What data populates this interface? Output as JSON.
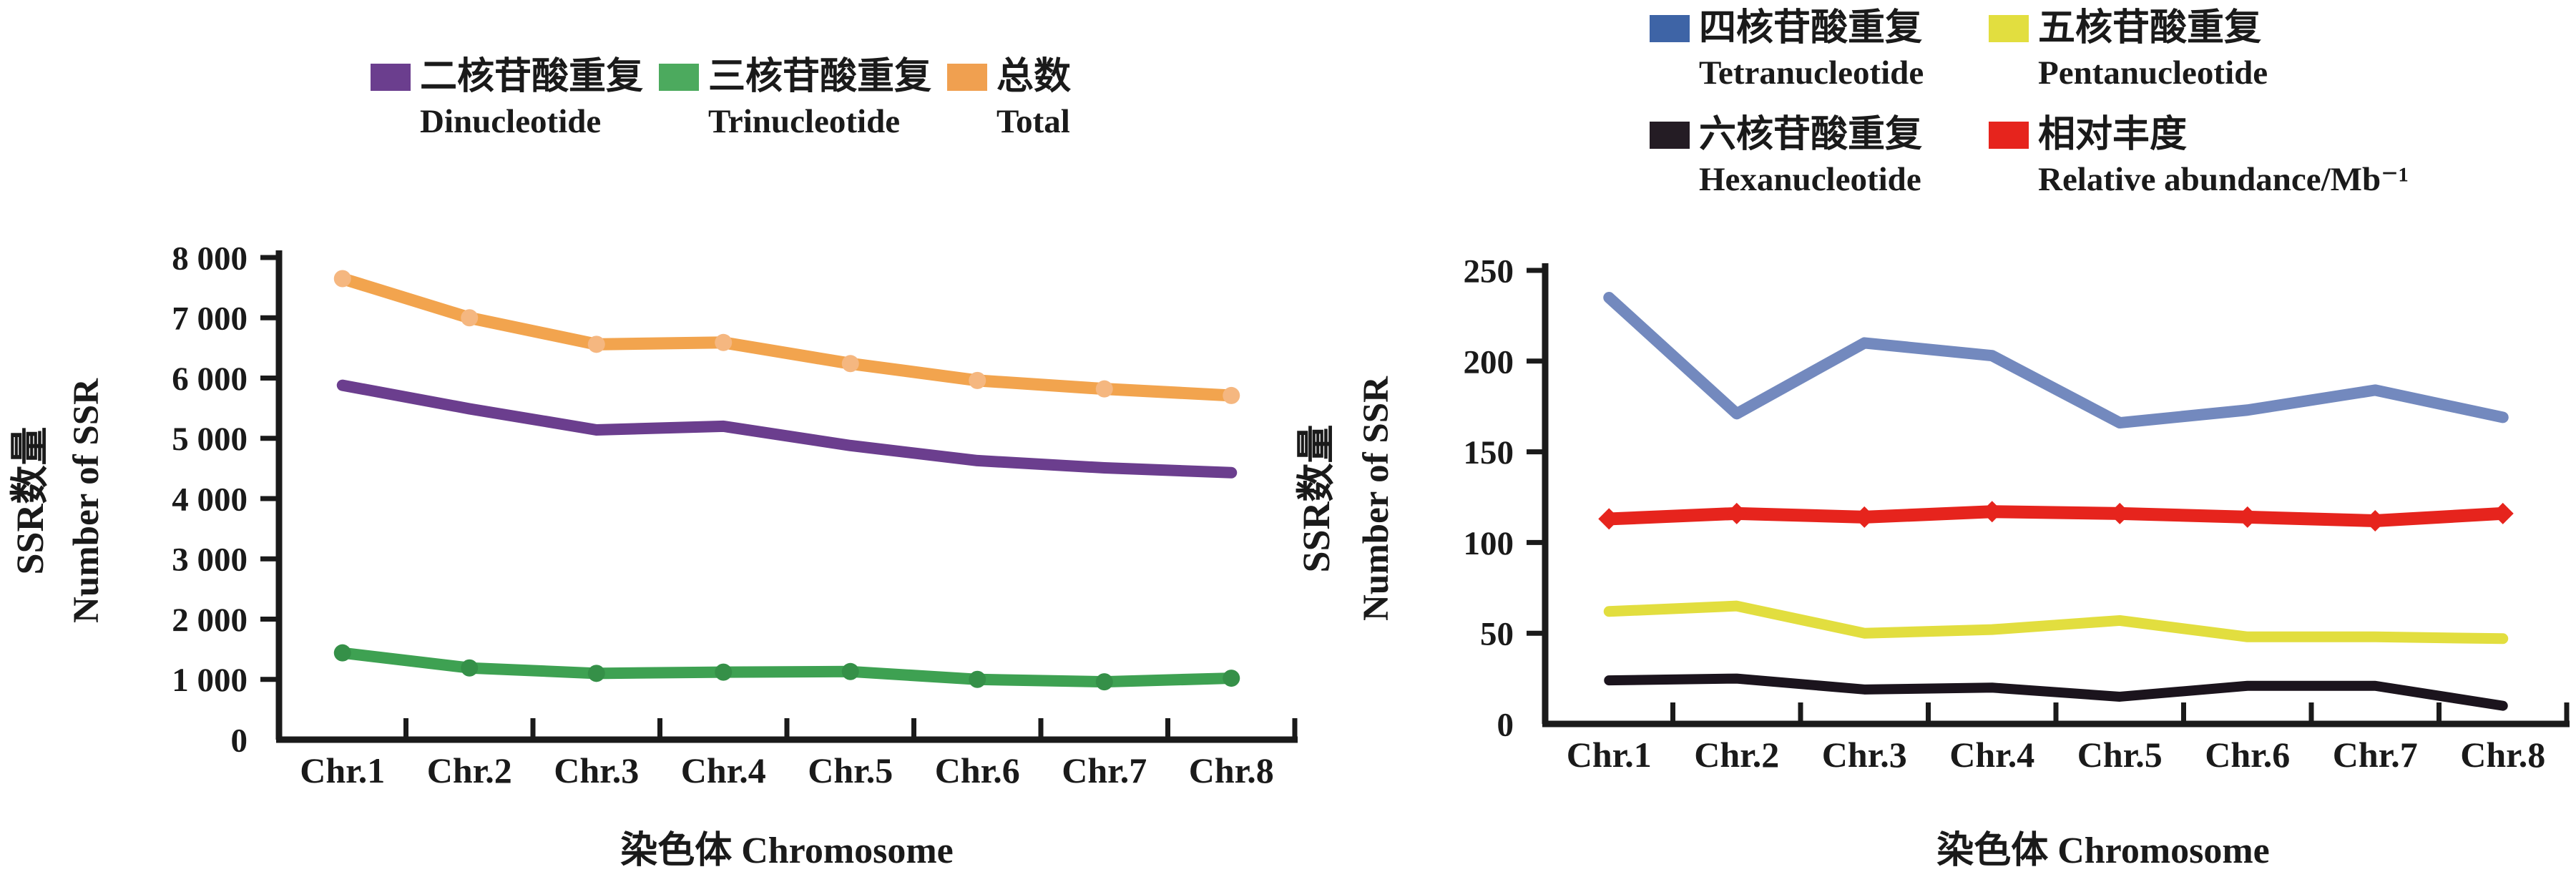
{
  "figure": {
    "background": "#ffffff",
    "text_color": "#1a1a1a"
  },
  "chart_data": [
    {
      "id": "left",
      "type": "line",
      "title": "",
      "xlabel": "染色体 Chromosome",
      "ylabel_zh": "SSR数量",
      "ylabel_en": "Number of SSR",
      "categories": [
        "Chr.1",
        "Chr.2",
        "Chr.3",
        "Chr.4",
        "Chr.5",
        "Chr.6",
        "Chr.7",
        "Chr.8"
      ],
      "ylim": [
        0,
        8000
      ],
      "ytick_step": 1000,
      "ytick_labels": [
        "0",
        "1 000",
        "2 000",
        "3 000",
        "4 000",
        "5 000",
        "6 000",
        "7 000",
        "8 000"
      ],
      "grid": false,
      "legend_position": "top",
      "series": [
        {
          "name_zh": "二核苷酸重复",
          "name_en": "Dinucleotide",
          "color": "#6B3E8E",
          "swatch_color": "#6B3E8E",
          "line_width": 16,
          "marker": "none",
          "values": [
            5880,
            5490,
            5140,
            5200,
            4880,
            4630,
            4510,
            4430
          ]
        },
        {
          "name_zh": "三核苷酸重复",
          "name_en": "Trinucleotide",
          "color": "#3EA152",
          "swatch_color": "#4CAA5E",
          "line_width": 16,
          "marker": "circle",
          "marker_color": "#359048",
          "marker_size": 12,
          "values": [
            1440,
            1190,
            1100,
            1120,
            1130,
            1000,
            960,
            1020
          ]
        },
        {
          "name_zh": "总数",
          "name_en": "Total",
          "color": "#F2A44E",
          "swatch_color": "#F0A050",
          "line_width": 17,
          "marker": "circle",
          "marker_color": "#F5B780",
          "marker_size": 12,
          "values": [
            7650,
            7000,
            6560,
            6590,
            6240,
            5960,
            5820,
            5710
          ]
        }
      ]
    },
    {
      "id": "right",
      "type": "line",
      "title": "",
      "xlabel": "染色体 Chromosome",
      "ylabel_zh": "SSR数量",
      "ylabel_en": "Number of SSR",
      "categories": [
        "Chr.1",
        "Chr.2",
        "Chr.3",
        "Chr.4",
        "Chr.5",
        "Chr.6",
        "Chr.7",
        "Chr.8"
      ],
      "ylim": [
        0,
        250
      ],
      "ytick_step": 50,
      "ytick_labels": [
        "0",
        "50",
        "100",
        "150",
        "200",
        "250"
      ],
      "grid": false,
      "legend_position": "top-right",
      "series": [
        {
          "name_zh": "四核苷酸重复",
          "name_en": "Tetranucleotide",
          "color": "#7389BE",
          "swatch_color": "#3E64A6",
          "line_width": 16,
          "marker": "none",
          "values": [
            235,
            171,
            210,
            203,
            166,
            173,
            184,
            169
          ]
        },
        {
          "name_zh": "五核苷酸重复",
          "name_en": "Pentanucleotide",
          "color": "#E2DE3F",
          "swatch_color": "#E2DE3F",
          "line_width": 15,
          "marker": "none",
          "values": [
            62,
            65,
            50,
            52,
            57,
            48,
            48,
            47
          ]
        },
        {
          "name_zh": "六核苷酸重复",
          "name_en": "Hexanucleotide",
          "color": "#1B141D",
          "swatch_color": "#241C24",
          "line_width": 14,
          "marker": "none",
          "values": [
            24,
            25,
            19,
            20,
            15,
            21,
            21,
            10
          ]
        },
        {
          "name_zh": "相对丰度",
          "name_en": "Relative abundance/Mb⁻¹",
          "color": "#E6241D",
          "swatch_color": "#E6241D",
          "line_width": 18,
          "marker": "diamond",
          "marker_color": "#E6241D",
          "marker_size": 15,
          "values": [
            113,
            116,
            114,
            117,
            116,
            114,
            112,
            116
          ]
        }
      ]
    }
  ]
}
